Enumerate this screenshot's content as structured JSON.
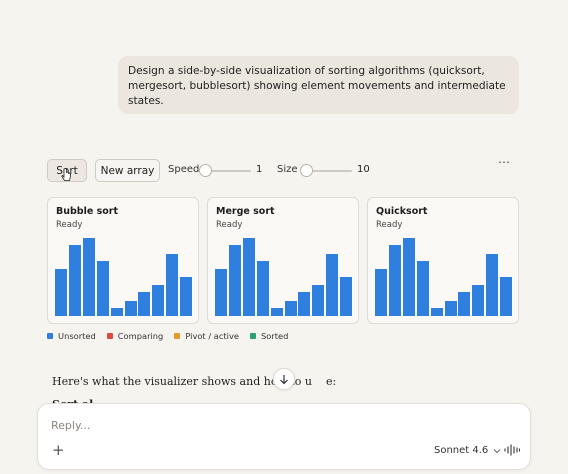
{
  "user_message": "Design a side-by-side visualization of sorting algorithms (quicksort, mergesort, bubblesort) showing element movements and intermediate states.",
  "controls": {
    "sort_label": "Sort",
    "new_array_label": "New array",
    "speed_label": "Speed",
    "speed_value": "1",
    "speed_level": 0,
    "size_label": "Size",
    "size_value": "10",
    "size_level": 0
  },
  "more_icon": "more-horizontal-icon",
  "panels": [
    {
      "title": "Bubble sort",
      "status": "Ready"
    },
    {
      "title": "Merge sort",
      "status": "Ready"
    },
    {
      "title": "Quicksort",
      "status": "Ready"
    }
  ],
  "array_values": [
    56,
    84,
    93,
    65,
    9,
    18,
    28,
    37,
    74,
    46
  ],
  "array_max": 100,
  "colors": {
    "unsorted": "#2f7fde",
    "comparing": "#d94b3f",
    "pivot": "#e39a2b",
    "sorted": "#27a37a"
  },
  "legend": [
    {
      "label": "Unsorted",
      "color": "#2f7fde"
    },
    {
      "label": "Comparing",
      "color": "#d94b3f"
    },
    {
      "label": "Pivot / active",
      "color": "#e39a2b"
    },
    {
      "label": "Sorted",
      "color": "#27a37a"
    }
  ],
  "assistant": {
    "line1": "Here's what the visualizer shows and how to u",
    "line1_tail": "e:",
    "line2": "Sort al"
  },
  "composer": {
    "placeholder": "Reply...",
    "model": "Sonnet 4.6"
  }
}
